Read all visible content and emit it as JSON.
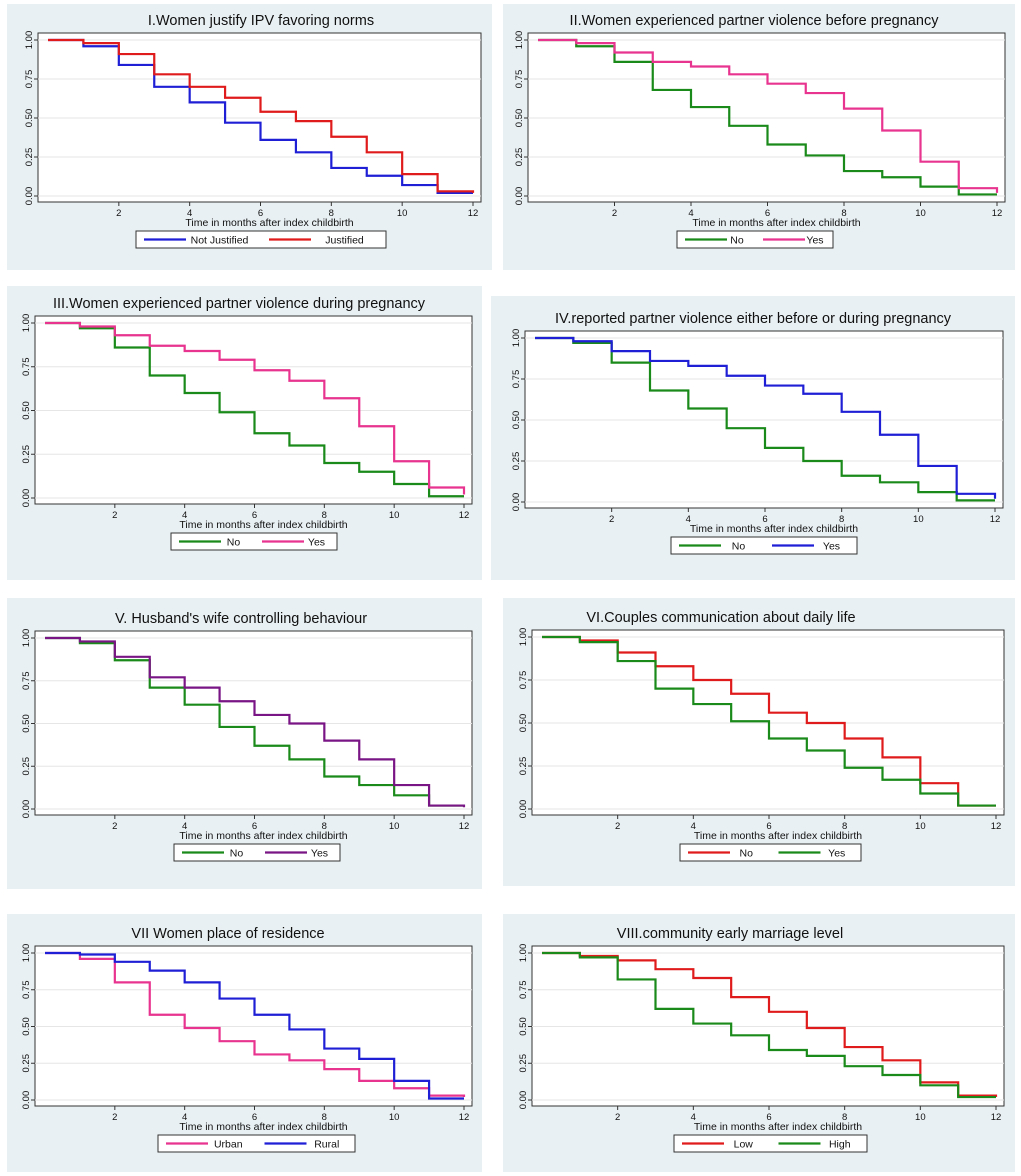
{
  "chart_data": [
    {
      "type": "line",
      "title": "I.Women justify IPV favoring norms",
      "xlabel": "Time in months after index childbirth",
      "ylabel": "",
      "xlim": [
        0,
        12
      ],
      "ylim": [
        0,
        1
      ],
      "xticks": [
        "2",
        "4",
        "6",
        "8",
        "10",
        "12"
      ],
      "yticks": [
        "0.00",
        "0.25",
        "0.50",
        "0.75",
        "1.00"
      ],
      "x": [
        0,
        1,
        2,
        3,
        4,
        5,
        6,
        7,
        8,
        9,
        10,
        11,
        12
      ],
      "series": [
        {
          "name": "Not Justified",
          "color": "#1f1fd6",
          "values": [
            1.0,
            0.96,
            0.84,
            0.7,
            0.6,
            0.47,
            0.36,
            0.28,
            0.18,
            0.13,
            0.07,
            0.02,
            0.02
          ]
        },
        {
          "name": "Justified",
          "color": "#e01b1b",
          "values": [
            1.0,
            0.98,
            0.91,
            0.78,
            0.7,
            0.63,
            0.54,
            0.48,
            0.38,
            0.28,
            0.14,
            0.03,
            0.02
          ]
        }
      ]
    },
    {
      "type": "line",
      "title": "II.Women experienced partner violence before pregnancy",
      "xlabel": "Time in months after index childbirth",
      "ylabel": "",
      "xlim": [
        0,
        12
      ],
      "ylim": [
        0,
        1
      ],
      "xticks": [
        "2",
        "4",
        "6",
        "8",
        "10",
        "12"
      ],
      "yticks": [
        "0.00",
        "0.25",
        "0.50",
        "0.75",
        "1.00"
      ],
      "x": [
        0,
        1,
        2,
        3,
        4,
        5,
        6,
        7,
        8,
        9,
        10,
        11,
        12
      ],
      "series": [
        {
          "name": "No",
          "color": "#1a8a1a",
          "values": [
            1.0,
            0.96,
            0.86,
            0.68,
            0.57,
            0.45,
            0.33,
            0.26,
            0.16,
            0.12,
            0.06,
            0.01,
            0.01
          ]
        },
        {
          "name": "Yes",
          "color": "#e8338f",
          "values": [
            1.0,
            0.98,
            0.92,
            0.86,
            0.83,
            0.78,
            0.72,
            0.66,
            0.56,
            0.42,
            0.22,
            0.05,
            0.02
          ]
        }
      ]
    },
    {
      "type": "line",
      "title": "III.Women experienced partner violence during pregnancy",
      "xlabel": "Time in months after index childbirth",
      "ylabel": "",
      "xlim": [
        0,
        12
      ],
      "ylim": [
        0,
        1
      ],
      "xticks": [
        "2",
        "4",
        "6",
        "8",
        "10",
        "12"
      ],
      "yticks": [
        "0.00",
        "0.25",
        "0.50",
        "0.75",
        "1.00"
      ],
      "x": [
        0,
        1,
        2,
        3,
        4,
        5,
        6,
        7,
        8,
        9,
        10,
        11,
        12
      ],
      "series": [
        {
          "name": "No",
          "color": "#1a8a1a",
          "values": [
            1.0,
            0.97,
            0.86,
            0.7,
            0.6,
            0.49,
            0.37,
            0.3,
            0.2,
            0.15,
            0.08,
            0.01,
            0.01
          ]
        },
        {
          "name": "Yes",
          "color": "#e8338f",
          "values": [
            1.0,
            0.98,
            0.93,
            0.87,
            0.84,
            0.79,
            0.73,
            0.67,
            0.57,
            0.41,
            0.21,
            0.06,
            0.02
          ]
        }
      ]
    },
    {
      "type": "line",
      "title": "IV.reported partner violence either before or during pregnancy",
      "xlabel": "Time in months after index childbirth",
      "ylabel": "",
      "xlim": [
        0,
        12
      ],
      "ylim": [
        0,
        1
      ],
      "xticks": [
        "2",
        "4",
        "6",
        "8",
        "10",
        "12"
      ],
      "yticks": [
        "0.00",
        "0.25",
        "0.50",
        "0.75",
        "1.00"
      ],
      "x": [
        0,
        1,
        2,
        3,
        4,
        5,
        6,
        7,
        8,
        9,
        10,
        11,
        12
      ],
      "series": [
        {
          "name": "No",
          "color": "#1a8a1a",
          "values": [
            1.0,
            0.97,
            0.85,
            0.68,
            0.57,
            0.45,
            0.33,
            0.25,
            0.16,
            0.12,
            0.06,
            0.01,
            0.01
          ]
        },
        {
          "name": "Yes",
          "color": "#1f1fd6",
          "values": [
            1.0,
            0.98,
            0.92,
            0.86,
            0.83,
            0.77,
            0.71,
            0.66,
            0.55,
            0.41,
            0.22,
            0.05,
            0.02
          ]
        }
      ]
    },
    {
      "type": "line",
      "title": "V. Husband's wife controlling behaviour",
      "xlabel": "Time in months after index childbirth",
      "ylabel": "",
      "xlim": [
        0,
        12
      ],
      "ylim": [
        0,
        1
      ],
      "xticks": [
        "2",
        "4",
        "6",
        "8",
        "10",
        "12"
      ],
      "yticks": [
        "0.00",
        "0.25",
        "0.50",
        "0.75",
        "1.00"
      ],
      "x": [
        0,
        1,
        2,
        3,
        4,
        5,
        6,
        7,
        8,
        9,
        10,
        11,
        12
      ],
      "series": [
        {
          "name": "No",
          "color": "#1a8a1a",
          "values": [
            1.0,
            0.97,
            0.87,
            0.71,
            0.61,
            0.48,
            0.37,
            0.29,
            0.19,
            0.14,
            0.08,
            0.02,
            0.02
          ]
        },
        {
          "name": "Yes",
          "color": "#7a1585",
          "values": [
            1.0,
            0.98,
            0.89,
            0.77,
            0.71,
            0.63,
            0.55,
            0.5,
            0.4,
            0.29,
            0.14,
            0.02,
            0.01
          ]
        }
      ]
    },
    {
      "type": "line",
      "title": "VI.Couples communication about daily life",
      "xlabel": "Time in months after index childbirth",
      "ylabel": "",
      "xlim": [
        0,
        12
      ],
      "ylim": [
        0,
        1
      ],
      "xticks": [
        "2",
        "4",
        "6",
        "8",
        "10",
        "12"
      ],
      "yticks": [
        "0.00",
        "0.25",
        "0.50",
        "0.75",
        "1.00"
      ],
      "x": [
        0,
        1,
        2,
        3,
        4,
        5,
        6,
        7,
        8,
        9,
        10,
        11,
        12
      ],
      "series": [
        {
          "name": "No",
          "color": "#e01b1b",
          "values": [
            1.0,
            0.98,
            0.91,
            0.83,
            0.75,
            0.67,
            0.56,
            0.5,
            0.41,
            0.3,
            0.15,
            0.02,
            0.02
          ]
        },
        {
          "name": "Yes",
          "color": "#1a8a1a",
          "values": [
            1.0,
            0.97,
            0.86,
            0.7,
            0.61,
            0.51,
            0.41,
            0.34,
            0.24,
            0.17,
            0.09,
            0.02,
            0.02
          ]
        }
      ]
    },
    {
      "type": "line",
      "title": "VII Women place of residence",
      "xlabel": "Time in months after index childbirth",
      "ylabel": "",
      "xlim": [
        0,
        12
      ],
      "ylim": [
        0,
        1
      ],
      "xticks": [
        "2",
        "4",
        "6",
        "8",
        "10",
        "12"
      ],
      "yticks": [
        "0.00",
        "0.25",
        "0.50",
        "0.75",
        "1.00"
      ],
      "x": [
        0,
        1,
        2,
        3,
        4,
        5,
        6,
        7,
        8,
        9,
        10,
        11,
        12
      ],
      "series": [
        {
          "name": "Urban",
          "color": "#e8338f",
          "values": [
            1.0,
            0.96,
            0.8,
            0.58,
            0.49,
            0.4,
            0.31,
            0.27,
            0.21,
            0.13,
            0.08,
            0.03,
            0.02
          ]
        },
        {
          "name": "Rural",
          "color": "#1f1fd6",
          "values": [
            1.0,
            0.99,
            0.94,
            0.88,
            0.8,
            0.69,
            0.58,
            0.48,
            0.35,
            0.28,
            0.13,
            0.01,
            0.01
          ]
        }
      ]
    },
    {
      "type": "line",
      "title": "VIII.community early marriage level",
      "xlabel": "Time in months after index childbirth",
      "ylabel": "",
      "xlim": [
        0,
        12
      ],
      "ylim": [
        0,
        1
      ],
      "xticks": [
        "2",
        "4",
        "6",
        "8",
        "10",
        "12"
      ],
      "yticks": [
        "0.00",
        "0.25",
        "0.50",
        "0.75",
        "1.00"
      ],
      "x": [
        0,
        1,
        2,
        3,
        4,
        5,
        6,
        7,
        8,
        9,
        10,
        11,
        12
      ],
      "series": [
        {
          "name": "Low",
          "color": "#e01b1b",
          "values": [
            1.0,
            0.98,
            0.95,
            0.89,
            0.83,
            0.7,
            0.6,
            0.49,
            0.36,
            0.27,
            0.12,
            0.03,
            0.02
          ]
        },
        {
          "name": "High",
          "color": "#1a8a1a",
          "values": [
            1.0,
            0.97,
            0.82,
            0.62,
            0.52,
            0.44,
            0.34,
            0.3,
            0.23,
            0.17,
            0.1,
            0.02,
            0.02
          ]
        }
      ]
    }
  ]
}
